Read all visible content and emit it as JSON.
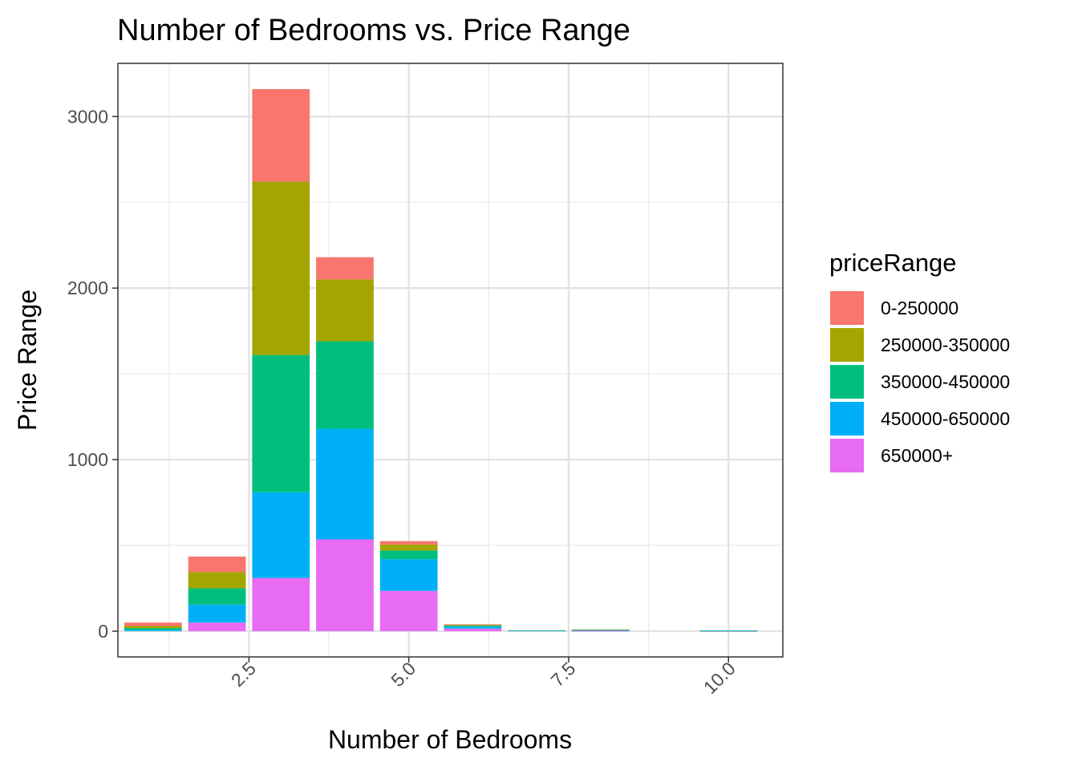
{
  "chart_data": {
    "type": "bar",
    "stacked": true,
    "title": "Number of Bedrooms vs. Price Range",
    "xlabel": "Number of Bedrooms",
    "ylabel": "Price Range",
    "xlim": [
      0.45,
      10.85
    ],
    "ylim": [
      -150,
      3310
    ],
    "x_ticks": [
      2.5,
      5.0,
      7.5,
      10.0
    ],
    "x_tick_labels": [
      "2.5",
      "5.0",
      "7.5",
      "10.0"
    ],
    "y_ticks": [
      0,
      1000,
      2000,
      3000
    ],
    "y_tick_labels": [
      "0",
      "1000",
      "2000",
      "3000"
    ],
    "grid": true,
    "legend": {
      "title": "priceRange",
      "placement": "right",
      "entries": [
        "0-250000",
        "250000-350000",
        "350000-450000",
        "450000-650000",
        "650000+"
      ]
    },
    "x": [
      1,
      2,
      3,
      4,
      5,
      6,
      7,
      8,
      10
    ],
    "series": [
      {
        "name": "0-250000",
        "color": "#F8766D",
        "values": [
          20,
          90,
          540,
          130,
          20,
          3,
          0,
          0,
          0
        ]
      },
      {
        "name": "250000-350000",
        "color": "#A3A500",
        "values": [
          12,
          95,
          1010,
          360,
          35,
          4,
          0,
          1,
          0
        ]
      },
      {
        "name": "350000-450000",
        "color": "#00BF7D",
        "values": [
          10,
          95,
          800,
          510,
          50,
          7,
          1,
          1,
          1
        ]
      },
      {
        "name": "450000-650000",
        "color": "#00B0F6",
        "values": [
          8,
          105,
          500,
          645,
          185,
          11,
          1,
          6,
          2
        ]
      },
      {
        "name": "650000+",
        "color": "#E76BF3",
        "values": [
          0,
          50,
          310,
          535,
          235,
          15,
          3,
          2,
          1
        ]
      }
    ]
  }
}
